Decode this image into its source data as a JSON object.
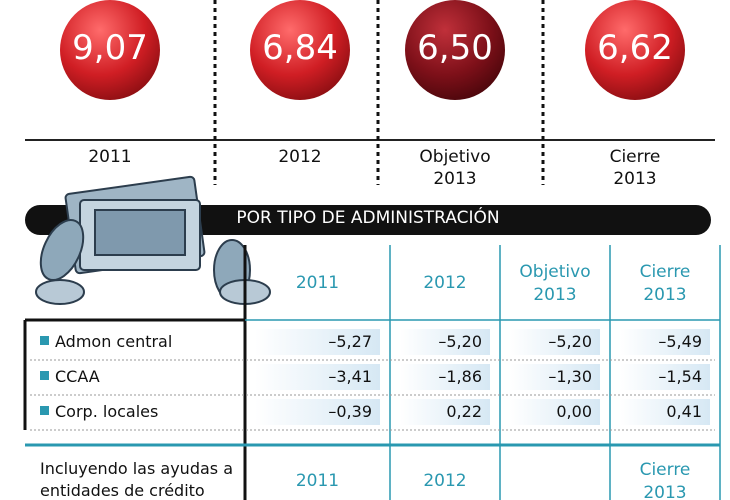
{
  "circles": [
    {
      "value": "9,07",
      "label": "2011"
    },
    {
      "value": "6,84",
      "label": "2012"
    },
    {
      "value": "6,50",
      "label": "Objetivo 2013"
    },
    {
      "value": "6,62",
      "label": "Cierre 2013"
    }
  ],
  "banner": "POR TIPO DE ADMINISTRACIÓN",
  "table": {
    "header": [
      "2011",
      "2012",
      "Objetivo 2013",
      "Cierre 2013"
    ],
    "rows": [
      {
        "name": "Admon central",
        "values": [
          "–5,27",
          "–5,20",
          "–5,20",
          "–5,49"
        ]
      },
      {
        "name": "CCAA",
        "values": [
          "–3,41",
          "–1,86",
          "–1,30",
          "–1,54"
        ]
      },
      {
        "name": "Corp. locales",
        "values": [
          "–0,39",
          "0,22",
          "0,00",
          "0,41"
        ]
      }
    ],
    "footer": {
      "label": "Incluyendo las ayudas a entidades de crédito",
      "values": [
        "2011",
        "2012",
        null,
        "Cierre 2013"
      ]
    }
  }
}
